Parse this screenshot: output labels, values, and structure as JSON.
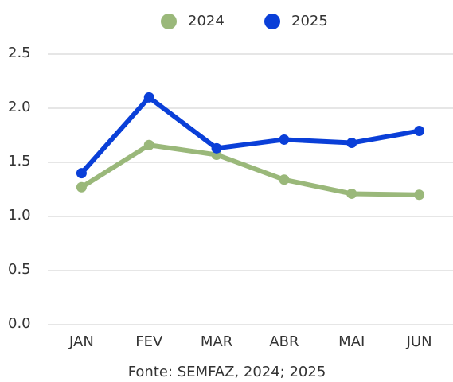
{
  "chart_data": {
    "type": "line",
    "categories": [
      "JAN",
      "FEV",
      "MAR",
      "ABR",
      "MAI",
      "JUN"
    ],
    "series": [
      {
        "name": "2024",
        "color": "#9ab87a",
        "values": [
          1.27,
          1.66,
          1.57,
          1.34,
          1.21,
          1.2
        ]
      },
      {
        "name": "2025",
        "color": "#0a3fd8",
        "values": [
          1.4,
          2.1,
          1.63,
          1.71,
          1.68,
          1.79
        ]
      }
    ],
    "ylim": [
      0,
      2.5
    ],
    "yticks": [
      {
        "value": 0,
        "label": "0.0"
      },
      0.5,
      {
        "value": 1,
        "label": "1.0"
      },
      1.5,
      {
        "value": 2,
        "label": "2.0"
      },
      2.5
    ],
    "grid": true,
    "legend": "top",
    "source": "Fonte: SEMFAZ, 2024; 2025"
  }
}
